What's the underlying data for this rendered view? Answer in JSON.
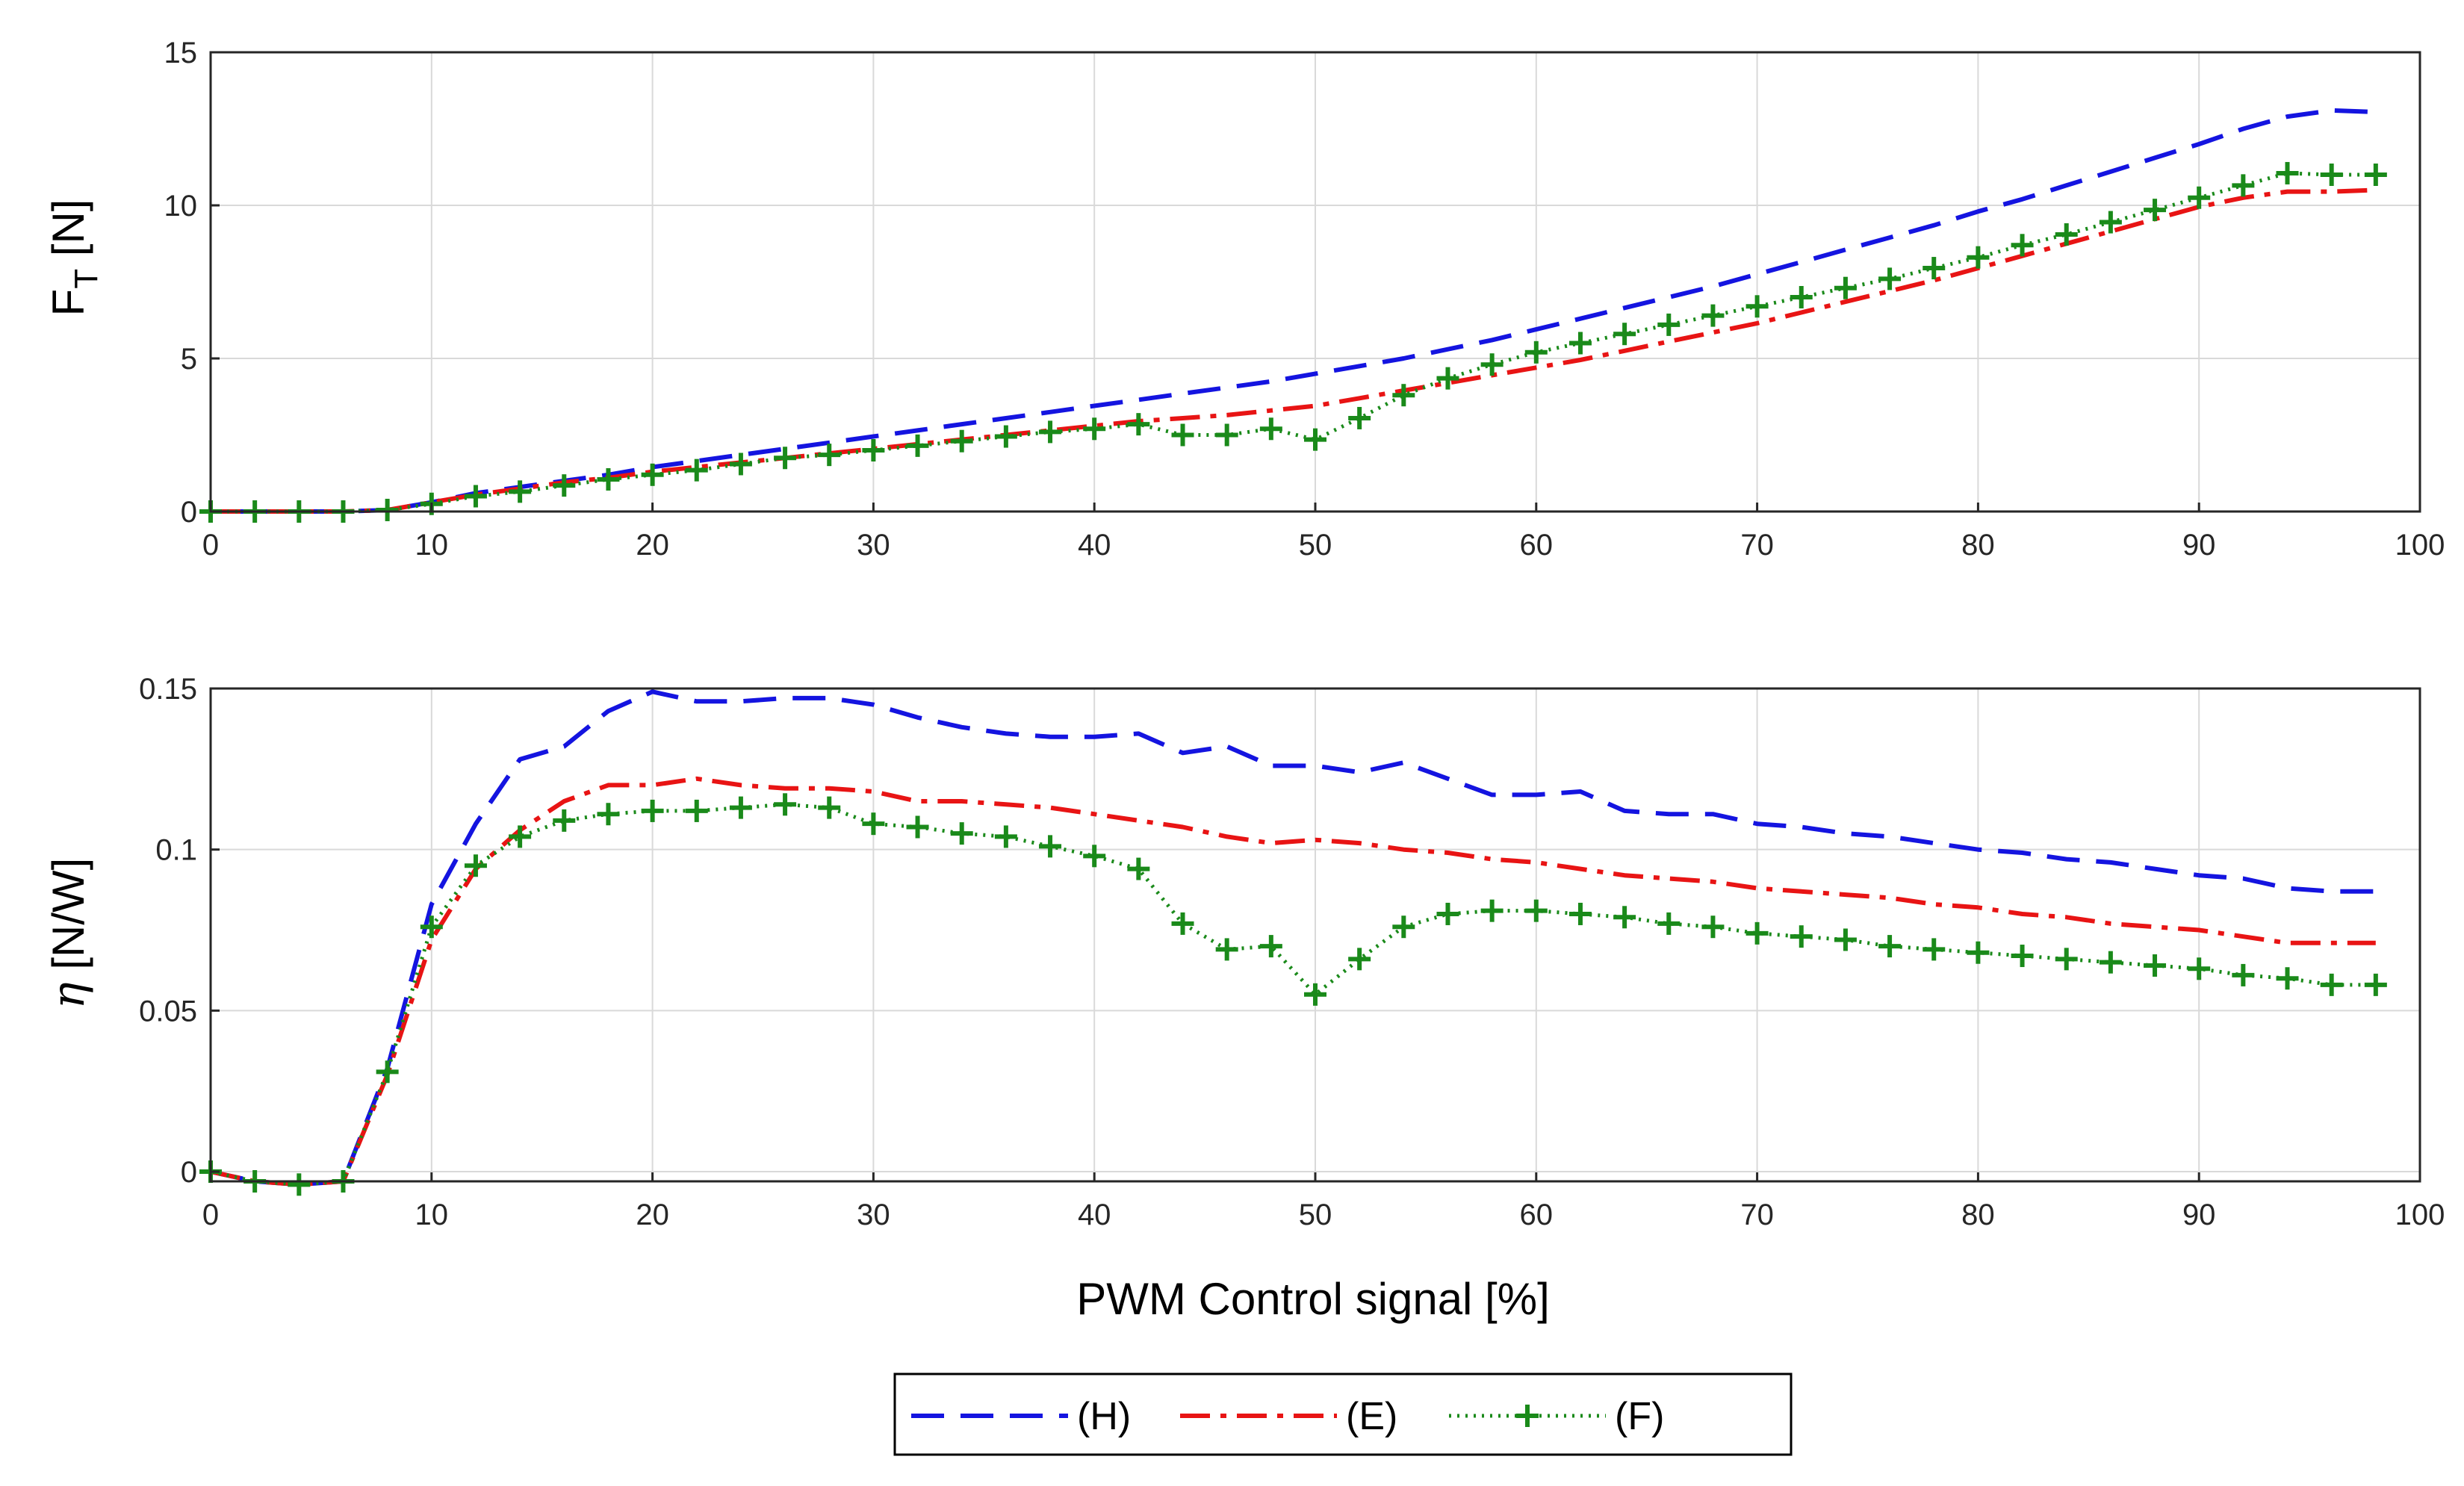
{
  "chart_data": [
    {
      "type": "line",
      "title": "",
      "xlabel": "",
      "ylabel_main": "F",
      "ylabel_sub": "T",
      "ylabel_unit": " [N]",
      "xlim": [
        0,
        100
      ],
      "ylim": [
        0,
        15
      ],
      "xticks": [
        0,
        10,
        20,
        30,
        40,
        50,
        60,
        70,
        80,
        90,
        100
      ],
      "yticks": [
        0,
        5,
        10,
        15
      ],
      "xtick_labels": [
        "0",
        "10",
        "20",
        "30",
        "40",
        "50",
        "60",
        "70",
        "80",
        "90",
        "100"
      ],
      "ytick_labels": [
        "0",
        "5",
        "10",
        "15"
      ],
      "grid": true,
      "x": [
        0,
        2,
        4,
        6,
        8,
        10,
        12,
        14,
        16,
        18,
        20,
        22,
        24,
        26,
        28,
        30,
        32,
        34,
        36,
        38,
        40,
        42,
        44,
        46,
        48,
        50,
        52,
        54,
        56,
        58,
        60,
        62,
        64,
        66,
        68,
        70,
        72,
        74,
        76,
        78,
        80,
        82,
        84,
        86,
        88,
        90,
        92,
        94,
        96,
        98
      ],
      "series": [
        {
          "name": "(H)",
          "values": [
            0,
            0,
            0,
            0,
            0.05,
            0.3,
            0.6,
            0.8,
            1.0,
            1.2,
            1.45,
            1.65,
            1.85,
            2.05,
            2.25,
            2.45,
            2.65,
            2.85,
            3.05,
            3.25,
            3.45,
            3.65,
            3.85,
            4.05,
            4.25,
            4.5,
            4.75,
            5.0,
            5.3,
            5.6,
            5.95,
            6.3,
            6.65,
            7.0,
            7.35,
            7.75,
            8.15,
            8.55,
            8.95,
            9.35,
            9.8,
            10.2,
            10.65,
            11.1,
            11.55,
            12.0,
            12.5,
            12.9,
            13.1,
            13.05
          ]
        },
        {
          "name": "(E)",
          "values": [
            0,
            0,
            0,
            0,
            0.05,
            0.3,
            0.55,
            0.75,
            0.95,
            1.1,
            1.3,
            1.45,
            1.6,
            1.75,
            1.9,
            2.05,
            2.2,
            2.35,
            2.5,
            2.65,
            2.8,
            2.95,
            3.05,
            3.15,
            3.3,
            3.45,
            3.7,
            3.95,
            4.2,
            4.45,
            4.7,
            4.95,
            5.25,
            5.55,
            5.85,
            6.15,
            6.5,
            6.85,
            7.2,
            7.55,
            7.95,
            8.35,
            8.75,
            9.15,
            9.55,
            9.95,
            10.25,
            10.45,
            10.45,
            10.5
          ]
        },
        {
          "name": "(F)",
          "values": [
            0,
            0,
            0,
            0,
            0.05,
            0.25,
            0.5,
            0.65,
            0.85,
            1.05,
            1.2,
            1.35,
            1.55,
            1.75,
            1.85,
            2.0,
            2.15,
            2.3,
            2.45,
            2.6,
            2.7,
            2.85,
            2.5,
            2.5,
            2.7,
            2.35,
            3.05,
            3.8,
            4.35,
            4.8,
            5.2,
            5.5,
            5.8,
            6.1,
            6.4,
            6.7,
            7.0,
            7.3,
            7.6,
            7.95,
            8.3,
            8.7,
            9.05,
            9.45,
            9.85,
            10.25,
            10.65,
            11.05,
            11.0,
            11.0
          ]
        }
      ],
      "colors": [
        "#1414e0",
        "#e81414",
        "#1a8a1a"
      ]
    },
    {
      "type": "line",
      "title": "",
      "xlabel": "PWM Control signal [%]",
      "ylabel_main": "η",
      "ylabel_unit": " [N/W]",
      "xlim": [
        0,
        100
      ],
      "ylim": [
        -0.003,
        0.15
      ],
      "xticks": [
        0,
        10,
        20,
        30,
        40,
        50,
        60,
        70,
        80,
        90,
        100
      ],
      "yticks": [
        0,
        0.05,
        0.1,
        0.15
      ],
      "xtick_labels": [
        "0",
        "10",
        "20",
        "30",
        "40",
        "50",
        "60",
        "70",
        "80",
        "90",
        "100"
      ],
      "ytick_labels": [
        "0",
        "0.05",
        "0.1",
        "0.15"
      ],
      "grid": true,
      "x": [
        0,
        2,
        4,
        6,
        8,
        10,
        12,
        14,
        16,
        18,
        20,
        22,
        24,
        26,
        28,
        30,
        32,
        34,
        36,
        38,
        40,
        42,
        44,
        46,
        48,
        50,
        52,
        54,
        56,
        58,
        60,
        62,
        64,
        66,
        68,
        70,
        72,
        74,
        76,
        78,
        80,
        82,
        84,
        86,
        88,
        90,
        92,
        94,
        96,
        98
      ],
      "series": [
        {
          "name": "(H)",
          "values": [
            0,
            -0.003,
            -0.004,
            -0.003,
            0.032,
            0.083,
            0.108,
            0.128,
            0.132,
            0.143,
            0.149,
            0.146,
            0.146,
            0.147,
            0.147,
            0.145,
            0.141,
            0.138,
            0.136,
            0.135,
            0.135,
            0.136,
            0.13,
            0.132,
            0.126,
            0.126,
            0.124,
            0.127,
            0.122,
            0.117,
            0.117,
            0.118,
            0.112,
            0.111,
            0.111,
            0.108,
            0.107,
            0.105,
            0.104,
            0.102,
            0.1,
            0.099,
            0.097,
            0.096,
            0.094,
            0.092,
            0.091,
            0.088,
            0.087,
            0.087
          ]
        },
        {
          "name": "(E)",
          "values": [
            0,
            -0.003,
            -0.004,
            -0.003,
            0.03,
            0.072,
            0.094,
            0.106,
            0.115,
            0.12,
            0.12,
            0.122,
            0.12,
            0.119,
            0.119,
            0.118,
            0.115,
            0.115,
            0.114,
            0.113,
            0.111,
            0.109,
            0.107,
            0.104,
            0.102,
            0.103,
            0.102,
            0.1,
            0.099,
            0.097,
            0.096,
            0.094,
            0.092,
            0.091,
            0.09,
            0.088,
            0.087,
            0.086,
            0.085,
            0.083,
            0.082,
            0.08,
            0.079,
            0.077,
            0.076,
            0.075,
            0.073,
            0.071,
            0.071,
            0.071
          ]
        },
        {
          "name": "(F)",
          "values": [
            0,
            -0.003,
            -0.004,
            -0.003,
            0.031,
            0.076,
            0.095,
            0.104,
            0.109,
            0.111,
            0.112,
            0.112,
            0.113,
            0.114,
            0.113,
            0.108,
            0.107,
            0.105,
            0.104,
            0.101,
            0.098,
            0.094,
            0.077,
            0.069,
            0.07,
            0.055,
            0.066,
            0.076,
            0.08,
            0.081,
            0.081,
            0.08,
            0.079,
            0.077,
            0.076,
            0.074,
            0.073,
            0.072,
            0.07,
            0.069,
            0.068,
            0.067,
            0.066,
            0.065,
            0.064,
            0.063,
            0.061,
            0.06,
            0.058,
            0.058
          ]
        }
      ],
      "colors": [
        "#1414e0",
        "#e81414",
        "#1a8a1a"
      ]
    }
  ],
  "legend": {
    "location": "bottom-center",
    "entries": [
      "(H)",
      "(E)",
      "(F)"
    ]
  }
}
